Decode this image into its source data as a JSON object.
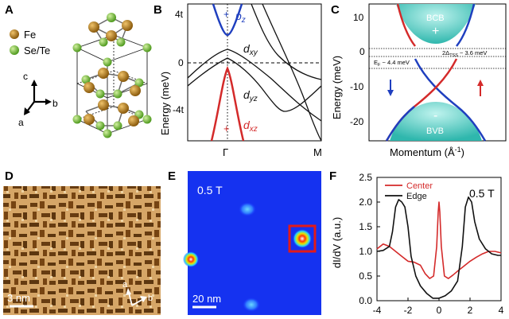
{
  "panels": {
    "A": {
      "letter": "A",
      "legend": [
        {
          "label": "Fe",
          "color": "#b07a12"
        },
        {
          "label": "Se/Te",
          "color": "#7ac143"
        }
      ],
      "axes": {
        "a": "a",
        "b": "b",
        "c": "c"
      }
    },
    "B": {
      "letter": "B",
      "ylabel": "Energy (meV)",
      "yticks": [
        "4t",
        "0",
        "-4t"
      ],
      "xticks": [
        "Γ",
        "M"
      ],
      "bands": [
        {
          "label": "p",
          "sub": "z",
          "color": "#1f3fbf",
          "sign": "+"
        },
        {
          "label": "d",
          "sub": "xy",
          "color": "#111111"
        },
        {
          "label": "d",
          "sub": "yz",
          "color": "#111111"
        },
        {
          "label": "d",
          "sub": "xz",
          "color": "#d42a2a",
          "sign": "+"
        }
      ]
    },
    "C": {
      "letter": "C",
      "ylabel": "Energy (meV)",
      "xlabel": "Momentum (Å",
      "xlabel_sup": "-1",
      "xlabel_end": ")",
      "yticks": [
        "10",
        "0",
        "-10",
        "-20"
      ],
      "bcb": "BCB",
      "bcb_sign": "+",
      "bvb": "BVB",
      "bvb_sign": "-",
      "gap_note": "2Δ",
      "gap_sub": "TSS",
      "gap_value": " ~ 3.6 meV",
      "ef_note": "E",
      "ef_sub": "F",
      "ef_value": " ~ 4.4 meV"
    },
    "D": {
      "letter": "D",
      "scalebar": "3 nm",
      "axes": {
        "a": "a",
        "b": "b"
      }
    },
    "E": {
      "letter": "E",
      "field": "0.5 T",
      "scalebar": "20 nm"
    },
    "F": {
      "letter": "F",
      "field": "0.5 T",
      "ylabel": "dI/dV (a.u.)",
      "legend": [
        {
          "label": "Center",
          "color": "#d42a2a"
        },
        {
          "label": "Edge",
          "color": "#111111"
        }
      ]
    }
  },
  "chart_data": {
    "type": "line",
    "title": "",
    "xlabel": "",
    "ylabel": "dI/dV (a.u.)",
    "xlim": [
      -4,
      4
    ],
    "ylim": [
      0,
      2.5
    ],
    "xticks": [
      -4,
      -2,
      0,
      2,
      4
    ],
    "yticks": [
      0.0,
      0.5,
      1.0,
      1.5,
      2.0,
      2.5
    ],
    "series": [
      {
        "name": "Center",
        "color": "#d42a2a",
        "x": [
          -4.0,
          -3.6,
          -3.2,
          -2.8,
          -2.4,
          -2.0,
          -1.6,
          -1.2,
          -0.9,
          -0.6,
          -0.35,
          -0.15,
          -0.05,
          0.0,
          0.05,
          0.15,
          0.35,
          0.6,
          0.9,
          1.2,
          1.6,
          2.0,
          2.4,
          2.8,
          3.2,
          3.6,
          4.0
        ],
        "y": [
          1.05,
          1.15,
          1.1,
          1.0,
          0.9,
          0.8,
          0.78,
          0.72,
          0.55,
          0.45,
          0.5,
          1.1,
          1.8,
          2.0,
          1.8,
          1.1,
          0.5,
          0.45,
          0.52,
          0.6,
          0.7,
          0.8,
          0.88,
          0.95,
          1.0,
          1.0,
          0.97
        ]
      },
      {
        "name": "Edge",
        "color": "#111111",
        "x": [
          -4.0,
          -3.6,
          -3.2,
          -3.0,
          -2.8,
          -2.6,
          -2.4,
          -2.2,
          -2.0,
          -1.8,
          -1.5,
          -1.2,
          -0.8,
          -0.4,
          0.0,
          0.4,
          0.8,
          1.2,
          1.5,
          1.7,
          1.9,
          2.1,
          2.3,
          2.6,
          3.0,
          3.4,
          3.8,
          4.0
        ],
        "y": [
          1.0,
          1.02,
          1.1,
          1.4,
          1.9,
          2.05,
          2.0,
          1.9,
          1.5,
          0.9,
          0.5,
          0.3,
          0.15,
          0.05,
          0.05,
          0.1,
          0.2,
          0.4,
          1.1,
          1.9,
          2.1,
          2.0,
          1.6,
          1.25,
          1.05,
          0.95,
          0.92,
          0.92
        ]
      }
    ]
  }
}
